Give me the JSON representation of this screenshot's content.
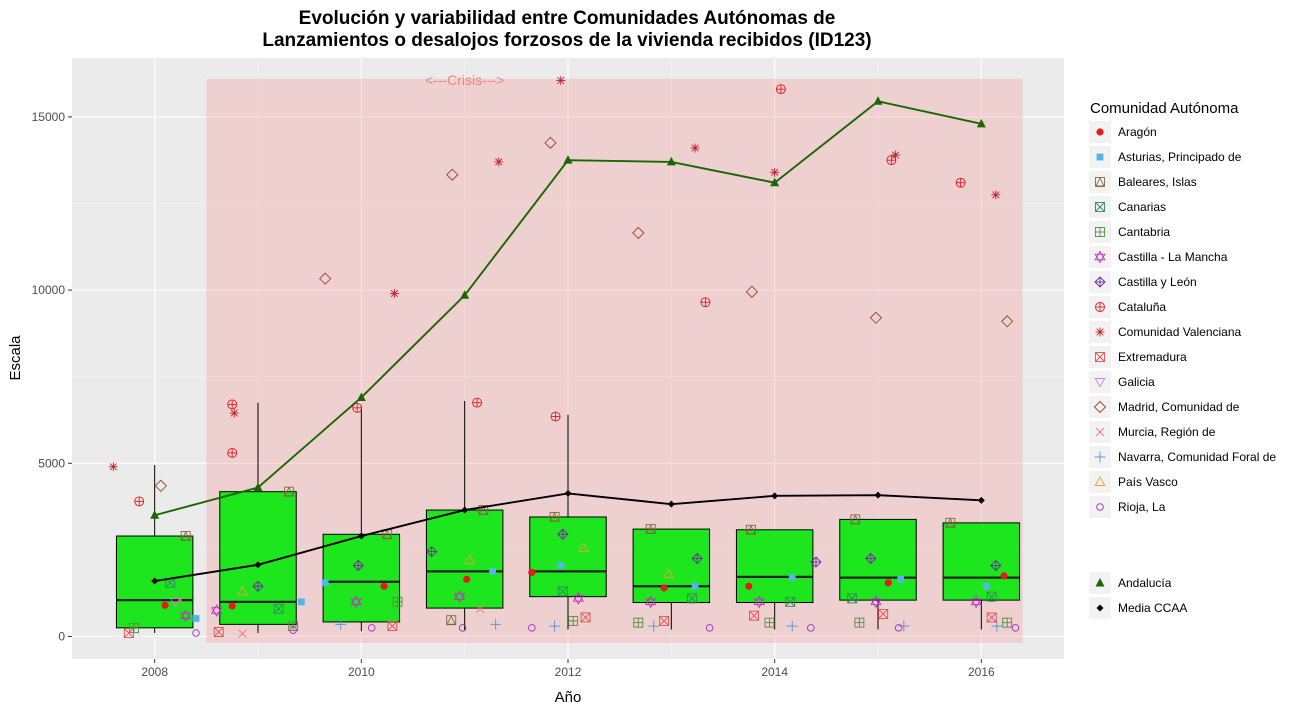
{
  "chart_data": {
    "type": "boxplot",
    "title_line1": "Evolución y variabilidad entre Comunidades Autónomas de",
    "title_line2": "Lanzamientos o desalojos forzosos de la vivienda recibidos (ID123)",
    "xlabel": "Año",
    "ylabel": "Escala",
    "xlim": [
      2007.2,
      2016.8
    ],
    "ylim": [
      -650,
      16700
    ],
    "x_ticks": [
      2008,
      2010,
      2012,
      2014,
      2016
    ],
    "y_ticks": [
      0,
      5000,
      10000,
      15000
    ],
    "grid": true,
    "legend_position": "right",
    "legend_title": "Comunidad Autónoma",
    "crisis_band": {
      "label": "<---Crisis--->",
      "x_start": 2008.5,
      "x_end": 2016.4,
      "y_top": 16100,
      "color": "#f4a6a6"
    },
    "colors": {
      "box_fill": "#1ee61e",
      "andalucia": "#1a6600",
      "media": "#000000"
    },
    "boxes": [
      {
        "year": 2008,
        "whisker_low": 100,
        "q1": 250,
        "median": 1050,
        "q3": 2900,
        "whisker_high": 4950
      },
      {
        "year": 2009,
        "whisker_low": 100,
        "q1": 350,
        "median": 1000,
        "q3": 4180,
        "whisker_high": 6750
      },
      {
        "year": 2010,
        "whisker_low": 150,
        "q1": 420,
        "median": 1580,
        "q3": 2950,
        "whisker_high": 6650
      },
      {
        "year": 2011,
        "whisker_low": 180,
        "q1": 820,
        "median": 1880,
        "q3": 3650,
        "whisker_high": 6800
      },
      {
        "year": 2012,
        "whisker_low": 200,
        "q1": 1150,
        "median": 1880,
        "q3": 3450,
        "whisker_high": 6400
      },
      {
        "year": 2013,
        "whisker_low": 200,
        "q1": 980,
        "median": 1450,
        "q3": 3100,
        "whisker_high": 3100
      },
      {
        "year": 2014,
        "whisker_low": 200,
        "q1": 980,
        "median": 1720,
        "q3": 3080,
        "whisker_high": 3080
      },
      {
        "year": 2015,
        "whisker_low": 200,
        "q1": 1050,
        "median": 1700,
        "q3": 3380,
        "whisker_high": 3380
      },
      {
        "year": 2016,
        "whisker_low": 200,
        "q1": 1050,
        "median": 1700,
        "q3": 3280,
        "whisker_high": 3280
      }
    ],
    "lines": [
      {
        "name": "Andalucía",
        "color": "#1a6600",
        "marker": "triangle",
        "x": [
          2008,
          2009,
          2010,
          2011,
          2012,
          2013,
          2014,
          2015,
          2016
        ],
        "values": [
          3500,
          4300,
          6900,
          9850,
          13750,
          13700,
          13100,
          15450,
          14800
        ]
      },
      {
        "name": "Media CCAA",
        "color": "#000000",
        "marker": "diamond",
        "x": [
          2008,
          2009,
          2010,
          2011,
          2012,
          2013,
          2014,
          2015,
          2016
        ],
        "values": [
          1600,
          2070,
          2900,
          3650,
          4130,
          3820,
          4060,
          4080,
          3930
        ]
      }
    ],
    "legend_regions": [
      {
        "name": "Aragón",
        "shape": "circle-filled",
        "color": "#e41a1c"
      },
      {
        "name": "Asturias, Principado de",
        "shape": "square-filled",
        "color": "#56b4e9"
      },
      {
        "name": "Baleares, Islas",
        "shape": "square-triangle",
        "color": "#7f6a3e"
      },
      {
        "name": "Canarias",
        "shape": "square-x",
        "color": "#2e8b57"
      },
      {
        "name": "Cantabria",
        "shape": "square-plus",
        "color": "#4f8f3a"
      },
      {
        "name": "Castilla - La Mancha",
        "shape": "star-david",
        "color": "#c030c0"
      },
      {
        "name": "Castilla y León",
        "shape": "diamond-plus",
        "color": "#6a2a9a"
      },
      {
        "name": "Cataluña",
        "shape": "circle-plus",
        "color": "#e41a1c"
      },
      {
        "name": "Comunidad Valenciana",
        "shape": "asterisk",
        "color": "#c0202a"
      },
      {
        "name": "Extremadura",
        "shape": "square-x",
        "color": "#e05050"
      },
      {
        "name": "Galicia",
        "shape": "triangle-down",
        "color": "#d080f0"
      },
      {
        "name": "Madrid, Comunidad de",
        "shape": "diamond-open",
        "color": "#a0402a"
      },
      {
        "name": "Murcia, Región de",
        "shape": "x",
        "color": "#f07080"
      },
      {
        "name": "Navarra, Comunidad Foral de",
        "shape": "plus",
        "color": "#5b8fd0"
      },
      {
        "name": "País Vasco",
        "shape": "triangle-open",
        "color": "#f0a030"
      },
      {
        "name": "Rioja, La",
        "shape": "circle-open",
        "color": "#a030c0"
      }
    ],
    "legend_lines": [
      {
        "name": "Andalucía",
        "shape": "triangle-filled",
        "color": "#1a6600"
      },
      {
        "name": "Media CCAA",
        "shape": "diamond-filled",
        "color": "#000000"
      }
    ],
    "points": [
      {
        "x": 2007.6,
        "y": 4900,
        "shape": "asterisk",
        "color": "#c0202a"
      },
      {
        "x": 2007.85,
        "y": 3900,
        "shape": "circle-plus",
        "color": "#e41a1c"
      },
      {
        "x": 2008.06,
        "y": 4350,
        "shape": "diamond-open",
        "color": "#a0402a"
      },
      {
        "x": 2008.3,
        "y": 2900,
        "shape": "square-triangle",
        "color": "#7f6a3e"
      },
      {
        "x": 2008.1,
        "y": 900,
        "shape": "circle-filled",
        "color": "#e41a1c"
      },
      {
        "x": 2008.4,
        "y": 520,
        "shape": "square-filled",
        "color": "#56b4e9"
      },
      {
        "x": 2008.15,
        "y": 1550,
        "shape": "square-x",
        "color": "#2e8b57"
      },
      {
        "x": 2007.8,
        "y": 240,
        "shape": "square-plus",
        "color": "#4f8f3a"
      },
      {
        "x": 2008.3,
        "y": 600,
        "shape": "star-david",
        "color": "#c030c0"
      },
      {
        "x": 2007.75,
        "y": 100,
        "shape": "square-x",
        "color": "#e05050"
      },
      {
        "x": 2008.2,
        "y": 1000,
        "shape": "triangle-down",
        "color": "#d080f0"
      },
      {
        "x": 2008.25,
        "y": 1050,
        "shape": "x",
        "color": "#f07080"
      },
      {
        "x": 2008.4,
        "y": 100,
        "shape": "circle-open",
        "color": "#a030c0"
      },
      {
        "x": 2008.75,
        "y": 6700,
        "shape": "circle-plus",
        "color": "#e41a1c"
      },
      {
        "x": 2008.77,
        "y": 6450,
        "shape": "asterisk",
        "color": "#c0202a"
      },
      {
        "x": 2008.75,
        "y": 5300,
        "shape": "circle-plus",
        "color": "#e41a1c"
      },
      {
        "x": 2009.3,
        "y": 4180,
        "shape": "square-triangle",
        "color": "#7f6a3e"
      },
      {
        "x": 2008.75,
        "y": 880,
        "shape": "circle-filled",
        "color": "#e41a1c"
      },
      {
        "x": 2009.42,
        "y": 1000,
        "shape": "square-filled",
        "color": "#56b4e9"
      },
      {
        "x": 2008.62,
        "y": 130,
        "shape": "square-x",
        "color": "#e05050"
      },
      {
        "x": 2008.6,
        "y": 750,
        "shape": "star-david",
        "color": "#c030c0"
      },
      {
        "x": 2009.0,
        "y": 1450,
        "shape": "diamond-plus",
        "color": "#6a2a9a"
      },
      {
        "x": 2009.2,
        "y": 800,
        "shape": "square-x",
        "color": "#2e8b57"
      },
      {
        "x": 2009.34,
        "y": 300,
        "shape": "square-plus",
        "color": "#4f8f3a"
      },
      {
        "x": 2008.85,
        "y": 80,
        "shape": "x",
        "color": "#f07080"
      },
      {
        "x": 2008.85,
        "y": 1300,
        "shape": "triangle-open",
        "color": "#f0a030"
      },
      {
        "x": 2009.34,
        "y": 180,
        "shape": "circle-open",
        "color": "#a030c0"
      },
      {
        "x": 2009.65,
        "y": 10330,
        "shape": "diamond-open",
        "color": "#a0402a"
      },
      {
        "x": 2010.32,
        "y": 9900,
        "shape": "asterisk",
        "color": "#c0202a"
      },
      {
        "x": 2009.96,
        "y": 6600,
        "shape": "circle-plus",
        "color": "#e41a1c"
      },
      {
        "x": 2010.25,
        "y": 2950,
        "shape": "square-triangle",
        "color": "#7f6a3e"
      },
      {
        "x": 2010.22,
        "y": 1450,
        "shape": "circle-filled",
        "color": "#e41a1c"
      },
      {
        "x": 2009.65,
        "y": 1550,
        "shape": "square-filled",
        "color": "#56b4e9"
      },
      {
        "x": 2009.95,
        "y": 1000,
        "shape": "star-david",
        "color": "#c030c0"
      },
      {
        "x": 2009.97,
        "y": 2050,
        "shape": "diamond-plus",
        "color": "#6a2a9a"
      },
      {
        "x": 2010.35,
        "y": 1000,
        "shape": "square-plus",
        "color": "#4f8f3a"
      },
      {
        "x": 2010.3,
        "y": 300,
        "shape": "square-x",
        "color": "#e05050"
      },
      {
        "x": 2009.8,
        "y": 350,
        "shape": "plus",
        "color": "#5b8fd0"
      },
      {
        "x": 2010.1,
        "y": 250,
        "shape": "circle-open",
        "color": "#a030c0"
      },
      {
        "x": 2010.88,
        "y": 13330,
        "shape": "diamond-open",
        "color": "#a0402a"
      },
      {
        "x": 2011.33,
        "y": 13700,
        "shape": "asterisk",
        "color": "#c0202a"
      },
      {
        "x": 2011.12,
        "y": 6750,
        "shape": "circle-plus",
        "color": "#e41a1c"
      },
      {
        "x": 2011.18,
        "y": 3650,
        "shape": "square-triangle",
        "color": "#7f6a3e"
      },
      {
        "x": 2011.02,
        "y": 1650,
        "shape": "circle-filled",
        "color": "#e41a1c"
      },
      {
        "x": 2011.27,
        "y": 1880,
        "shape": "square-filled",
        "color": "#56b4e9"
      },
      {
        "x": 2010.68,
        "y": 2450,
        "shape": "diamond-plus",
        "color": "#6a2a9a"
      },
      {
        "x": 2010.95,
        "y": 1150,
        "shape": "star-david",
        "color": "#c030c0"
      },
      {
        "x": 2010.87,
        "y": 470,
        "shape": "square-triangle",
        "color": "#7f6a3e"
      },
      {
        "x": 2011.05,
        "y": 2200,
        "shape": "triangle-open",
        "color": "#f0a030"
      },
      {
        "x": 2011.15,
        "y": 800,
        "shape": "x",
        "color": "#f07080"
      },
      {
        "x": 2011.3,
        "y": 350,
        "shape": "plus",
        "color": "#5b8fd0"
      },
      {
        "x": 2010.98,
        "y": 250,
        "shape": "circle-open",
        "color": "#a030c0"
      },
      {
        "x": 2011.93,
        "y": 16050,
        "shape": "asterisk",
        "color": "#c0202a"
      },
      {
        "x": 2011.83,
        "y": 14250,
        "shape": "diamond-open",
        "color": "#a0402a"
      },
      {
        "x": 2011.88,
        "y": 6350,
        "shape": "circle-plus",
        "color": "#e41a1c"
      },
      {
        "x": 2011.87,
        "y": 3450,
        "shape": "square-triangle",
        "color": "#7f6a3e"
      },
      {
        "x": 2011.93,
        "y": 2050,
        "shape": "square-filled",
        "color": "#56b4e9"
      },
      {
        "x": 2011.95,
        "y": 2950,
        "shape": "diamond-plus",
        "color": "#6a2a9a"
      },
      {
        "x": 2012.1,
        "y": 1100,
        "shape": "star-david",
        "color": "#c030c0"
      },
      {
        "x": 2012.15,
        "y": 2550,
        "shape": "triangle-open",
        "color": "#f0a030"
      },
      {
        "x": 2012.05,
        "y": 450,
        "shape": "square-plus",
        "color": "#4f8f3a"
      },
      {
        "x": 2012.17,
        "y": 550,
        "shape": "square-x",
        "color": "#e05050"
      },
      {
        "x": 2011.65,
        "y": 1850,
        "shape": "circle-filled",
        "color": "#e41a1c"
      },
      {
        "x": 2011.95,
        "y": 1300,
        "shape": "square-x",
        "color": "#2e8b57"
      },
      {
        "x": 2011.87,
        "y": 300,
        "shape": "plus",
        "color": "#5b8fd0"
      },
      {
        "x": 2011.65,
        "y": 250,
        "shape": "circle-open",
        "color": "#a030c0"
      },
      {
        "x": 2013.23,
        "y": 14100,
        "shape": "asterisk",
        "color": "#c0202a"
      },
      {
        "x": 2012.68,
        "y": 11650,
        "shape": "diamond-open",
        "color": "#a0402a"
      },
      {
        "x": 2013.33,
        "y": 9650,
        "shape": "circle-plus",
        "color": "#e41a1c"
      },
      {
        "x": 2012.8,
        "y": 3100,
        "shape": "square-triangle",
        "color": "#7f6a3e"
      },
      {
        "x": 2013.25,
        "y": 2250,
        "shape": "diamond-plus",
        "color": "#6a2a9a"
      },
      {
        "x": 2012.93,
        "y": 1400,
        "shape": "circle-filled",
        "color": "#e41a1c"
      },
      {
        "x": 2013.23,
        "y": 1450,
        "shape": "square-filled",
        "color": "#56b4e9"
      },
      {
        "x": 2012.8,
        "y": 1000,
        "shape": "star-david",
        "color": "#c030c0"
      },
      {
        "x": 2013.2,
        "y": 1100,
        "shape": "square-x",
        "color": "#2e8b57"
      },
      {
        "x": 2012.97,
        "y": 1800,
        "shape": "triangle-open",
        "color": "#f0a030"
      },
      {
        "x": 2012.93,
        "y": 450,
        "shape": "square-x",
        "color": "#e05050"
      },
      {
        "x": 2012.68,
        "y": 400,
        "shape": "square-plus",
        "color": "#4f8f3a"
      },
      {
        "x": 2012.83,
        "y": 300,
        "shape": "plus",
        "color": "#5b8fd0"
      },
      {
        "x": 2013.37,
        "y": 250,
        "shape": "circle-open",
        "color": "#a030c0"
      },
      {
        "x": 2014.06,
        "y": 15800,
        "shape": "circle-plus",
        "color": "#e41a1c"
      },
      {
        "x": 2014.0,
        "y": 13400,
        "shape": "asterisk",
        "color": "#c0202a"
      },
      {
        "x": 2013.78,
        "y": 9950,
        "shape": "diamond-open",
        "color": "#a0402a"
      },
      {
        "x": 2013.77,
        "y": 3080,
        "shape": "square-triangle",
        "color": "#7f6a3e"
      },
      {
        "x": 2014.4,
        "y": 2150,
        "shape": "diamond-plus",
        "color": "#6a2a9a"
      },
      {
        "x": 2013.75,
        "y": 1450,
        "shape": "circle-filled",
        "color": "#e41a1c"
      },
      {
        "x": 2014.17,
        "y": 1700,
        "shape": "square-filled",
        "color": "#56b4e9"
      },
      {
        "x": 2013.85,
        "y": 1000,
        "shape": "star-david",
        "color": "#c030c0"
      },
      {
        "x": 2014.15,
        "y": 1000,
        "shape": "square-x",
        "color": "#2e8b57"
      },
      {
        "x": 2013.8,
        "y": 600,
        "shape": "square-x",
        "color": "#e05050"
      },
      {
        "x": 2013.95,
        "y": 400,
        "shape": "square-plus",
        "color": "#4f8f3a"
      },
      {
        "x": 2014.17,
        "y": 300,
        "shape": "plus",
        "color": "#5b8fd0"
      },
      {
        "x": 2014.35,
        "y": 250,
        "shape": "circle-open",
        "color": "#a030c0"
      },
      {
        "x": 2015.17,
        "y": 13900,
        "shape": "asterisk",
        "color": "#c0202a"
      },
      {
        "x": 2015.13,
        "y": 13750,
        "shape": "circle-plus",
        "color": "#e41a1c"
      },
      {
        "x": 2014.98,
        "y": 9200,
        "shape": "diamond-open",
        "color": "#a0402a"
      },
      {
        "x": 2014.78,
        "y": 3380,
        "shape": "square-triangle",
        "color": "#7f6a3e"
      },
      {
        "x": 2014.93,
        "y": 2250,
        "shape": "diamond-plus",
        "color": "#6a2a9a"
      },
      {
        "x": 2015.1,
        "y": 1550,
        "shape": "circle-filled",
        "color": "#e41a1c"
      },
      {
        "x": 2015.22,
        "y": 1650,
        "shape": "square-filled",
        "color": "#56b4e9"
      },
      {
        "x": 2014.98,
        "y": 1000,
        "shape": "star-david",
        "color": "#c030c0"
      },
      {
        "x": 2014.75,
        "y": 1100,
        "shape": "square-x",
        "color": "#2e8b57"
      },
      {
        "x": 2015.05,
        "y": 650,
        "shape": "square-x",
        "color": "#e05050"
      },
      {
        "x": 2014.82,
        "y": 400,
        "shape": "square-plus",
        "color": "#4f8f3a"
      },
      {
        "x": 2015.25,
        "y": 300,
        "shape": "plus",
        "color": "#5b8fd0"
      },
      {
        "x": 2015.2,
        "y": 250,
        "shape": "circle-open",
        "color": "#a030c0"
      },
      {
        "x": 2016.14,
        "y": 12750,
        "shape": "asterisk",
        "color": "#c0202a"
      },
      {
        "x": 2015.8,
        "y": 13100,
        "shape": "circle-plus",
        "color": "#e41a1c"
      },
      {
        "x": 2016.25,
        "y": 9100,
        "shape": "diamond-open",
        "color": "#a0402a"
      },
      {
        "x": 2015.7,
        "y": 3280,
        "shape": "square-triangle",
        "color": "#7f6a3e"
      },
      {
        "x": 2016.14,
        "y": 2050,
        "shape": "diamond-plus",
        "color": "#6a2a9a"
      },
      {
        "x": 2016.22,
        "y": 1750,
        "shape": "circle-filled",
        "color": "#e41a1c"
      },
      {
        "x": 2016.05,
        "y": 1450,
        "shape": "square-filled",
        "color": "#56b4e9"
      },
      {
        "x": 2015.95,
        "y": 1000,
        "shape": "star-david",
        "color": "#c030c0"
      },
      {
        "x": 2016.1,
        "y": 1150,
        "shape": "square-x",
        "color": "#2e8b57"
      },
      {
        "x": 2016.1,
        "y": 550,
        "shape": "square-x",
        "color": "#e05050"
      },
      {
        "x": 2016.25,
        "y": 400,
        "shape": "square-plus",
        "color": "#4f8f3a"
      },
      {
        "x": 2016.15,
        "y": 300,
        "shape": "plus",
        "color": "#5b8fd0"
      },
      {
        "x": 2016.33,
        "y": 250,
        "shape": "circle-open",
        "color": "#a030c0"
      }
    ]
  }
}
